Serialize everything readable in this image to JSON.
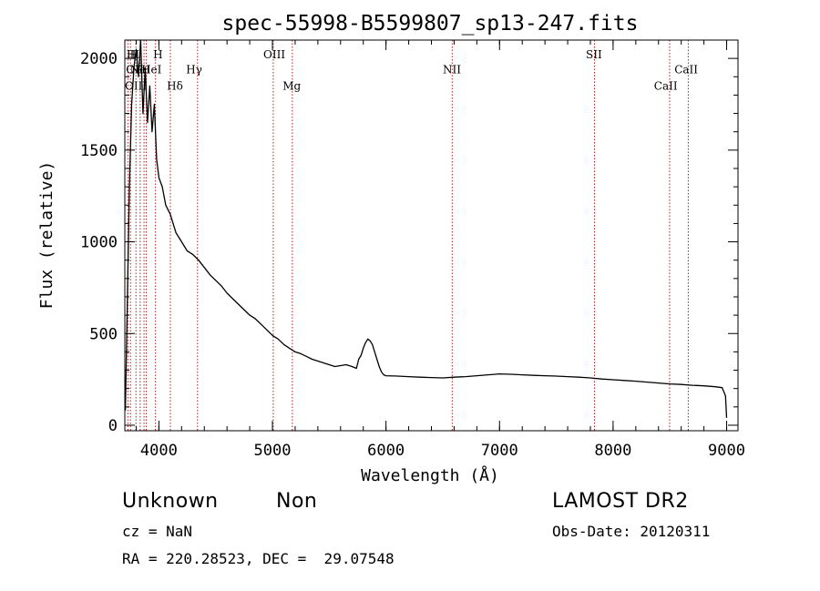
{
  "chart_data": {
    "type": "line",
    "title": "spec-55998-B5599807_sp13-247.fits",
    "xlabel": "Wavelength (Å)",
    "ylabel": "Flux (relative)",
    "xlim": [
      3700,
      9100
    ],
    "ylim": [
      -30,
      2100
    ],
    "xticks": [
      4000,
      5000,
      6000,
      7000,
      8000,
      9000
    ],
    "yticks": [
      0,
      500,
      1000,
      1500,
      2000
    ],
    "grid": false,
    "series": [
      {
        "x": [
          3705,
          3720,
          3740,
          3760,
          3780,
          3800,
          3820,
          3840,
          3860,
          3880,
          3900,
          3920,
          3940,
          3960,
          3980,
          4000,
          4030,
          4060,
          4100,
          4150,
          4200,
          4250,
          4300,
          4350,
          4400,
          4450,
          4500,
          4550,
          4600,
          4650,
          4700,
          4750,
          4800,
          4850,
          4900,
          4950,
          5000,
          5050,
          5100,
          5150,
          5200,
          5250,
          5300,
          5350,
          5400,
          5450,
          5500,
          5550,
          5600,
          5650,
          5700,
          5740,
          5760,
          5780,
          5800,
          5820,
          5840,
          5860,
          5880,
          5900,
          5920,
          5940,
          5960,
          5980,
          6000,
          6100,
          6200,
          6300,
          6400,
          6500,
          6600,
          6700,
          6800,
          6900,
          7000,
          7100,
          7200,
          7300,
          7400,
          7500,
          7600,
          7700,
          7800,
          7900,
          8000,
          8100,
          8200,
          8300,
          8400,
          8500,
          8600,
          8700,
          8800,
          8900,
          8960,
          8990,
          9000
        ],
        "y": [
          80,
          600,
          1300,
          1750,
          1950,
          2050,
          1900,
          2100,
          1700,
          1950,
          1650,
          1850,
          1600,
          1750,
          1450,
          1350,
          1300,
          1200,
          1150,
          1050,
          1000,
          950,
          930,
          900,
          860,
          820,
          790,
          760,
          720,
          690,
          660,
          630,
          600,
          580,
          550,
          520,
          490,
          470,
          440,
          420,
          400,
          390,
          375,
          360,
          350,
          340,
          330,
          320,
          325,
          330,
          320,
          310,
          360,
          380,
          420,
          450,
          470,
          460,
          440,
          400,
          360,
          320,
          290,
          275,
          270,
          268,
          265,
          262,
          260,
          258,
          262,
          265,
          270,
          275,
          280,
          278,
          275,
          272,
          270,
          268,
          265,
          262,
          258,
          252,
          248,
          244,
          240,
          235,
          230,
          225,
          222,
          218,
          215,
          210,
          205,
          160,
          40
        ]
      }
    ],
    "lines": [
      {
        "x": 3727,
        "label": "OII"
      },
      {
        "x": 3750,
        "label": "H"
      },
      {
        "x": 3798,
        "label": "H"
      },
      {
        "x": 3835,
        "label": "H"
      },
      {
        "x": 3869,
        "label": "NeIII"
      },
      {
        "x": 3889,
        "label": "He I"
      },
      {
        "x": 3970,
        "label": "H"
      },
      {
        "x": 4101,
        "label": "Hδ"
      },
      {
        "x": 4340,
        "label": "Hγ"
      },
      {
        "x": 5007,
        "label": "OIII"
      },
      {
        "x": 5175,
        "label": "Mg"
      },
      {
        "x": 6583,
        "label": "NII"
      },
      {
        "x": 7836,
        "label": "SII"
      },
      {
        "x": 8498,
        "label": "CaII"
      },
      {
        "x": 8662,
        "label": "CaII"
      }
    ],
    "annotations": [
      {
        "x": 3715,
        "y": 2000,
        "text": "H"
      },
      {
        "x": 3745,
        "y": 2000,
        "text": "H"
      },
      {
        "x": 3950,
        "y": 2000,
        "text": "H"
      },
      {
        "x": 3710,
        "y": 1920,
        "text": "OII"
      },
      {
        "x": 3745,
        "y": 1920,
        "text": "NeI"
      },
      {
        "x": 3845,
        "y": 1920,
        "text": "HeI"
      },
      {
        "x": 3700,
        "y": 1830,
        "text": "OIII"
      },
      {
        "x": 4070,
        "y": 1830,
        "text": "Hδ"
      },
      {
        "x": 4240,
        "y": 1920,
        "text": "Hγ"
      },
      {
        "x": 4920,
        "y": 2000,
        "text": "OIII"
      },
      {
        "x": 5090,
        "y": 1830,
        "text": "Mg"
      },
      {
        "x": 6500,
        "y": 1920,
        "text": "NII"
      },
      {
        "x": 7760,
        "y": 2000,
        "text": "SII"
      },
      {
        "x": 8360,
        "y": 1830,
        "text": "CaII"
      },
      {
        "x": 8540,
        "y": 1920,
        "text": "CaII"
      }
    ],
    "colors": {
      "spectrum": "#000000",
      "marker_lines": "#b22222",
      "axes": "#000000"
    }
  },
  "info": {
    "object_class": "Unknown",
    "subclass": "Non",
    "survey": "LAMOST DR2",
    "cz": "cz = NaN",
    "obs_date": "Obs-Date: 20120311",
    "coords": "RA = 220.28523, DEC =  29.07548"
  }
}
